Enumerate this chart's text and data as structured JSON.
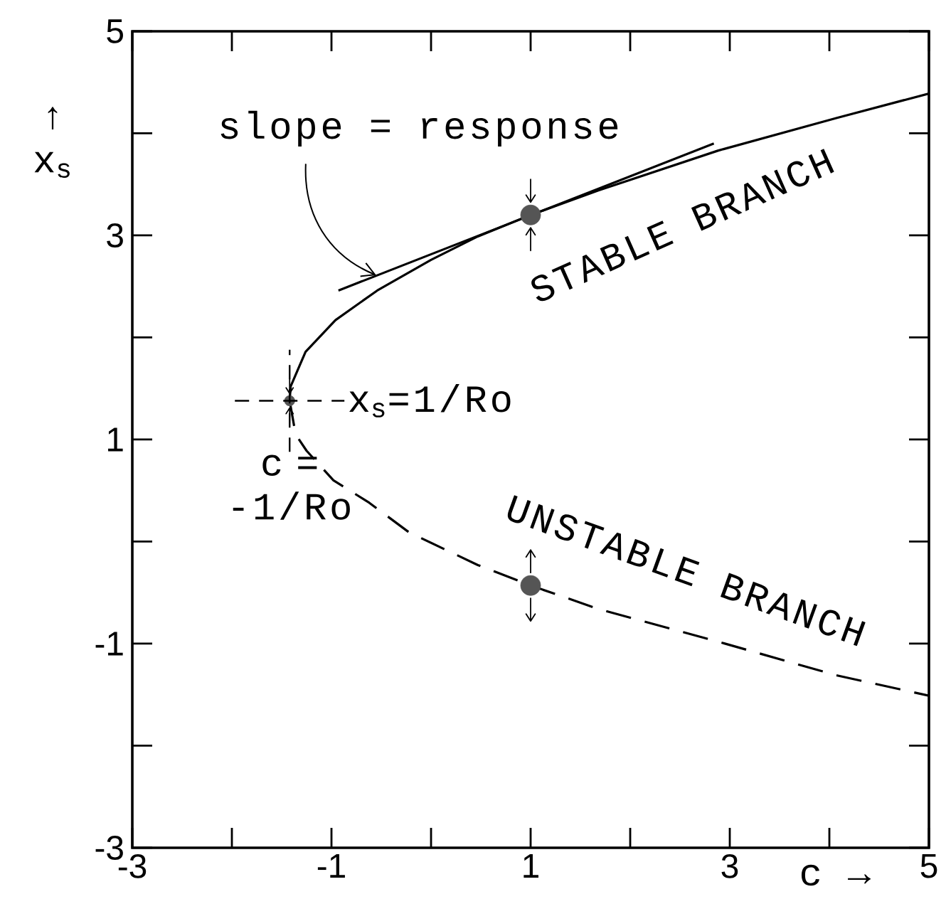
{
  "chart_data": {
    "type": "line",
    "xlabel": "c →",
    "ylabel": "↑ x$_{s}$",
    "xlim": [
      -3,
      5
    ],
    "ylim": [
      -3,
      5
    ],
    "xticks": [
      -3,
      {
        "value": -2,
        "label": null
      },
      -1,
      {
        "value": 0,
        "label": null
      },
      1,
      {
        "value": 2,
        "label": null
      },
      3,
      {
        "value": 4,
        "label": null
      },
      5
    ],
    "yticks": [
      -3,
      {
        "value": -2,
        "label": null
      },
      -1,
      {
        "value": 0,
        "label": null
      },
      1,
      {
        "value": 2,
        "label": null
      },
      3,
      {
        "value": 4,
        "label": null
      },
      5
    ],
    "series": [
      {
        "color": "#000000",
        "line_style": "solid",
        "x": [
          -1.42,
          -1.41,
          -1.26,
          -0.96,
          -0.54,
          0.0,
          0.47,
          1.0,
          1.68,
          2.88,
          4.07,
          5.0
        ],
        "values": [
          1.38,
          1.52,
          1.86,
          2.17,
          2.46,
          2.76,
          2.99,
          3.2,
          3.44,
          3.83,
          4.15,
          4.39
        ]
      },
      {
        "color": "#000000",
        "line_style": "dashed",
        "x": [
          -1.42,
          -1.36,
          -1.25,
          -0.98,
          -0.62,
          -0.22,
          0.47,
          1.0,
          1.68,
          2.88,
          4.07,
          5.0
        ],
        "values": [
          1.38,
          1.05,
          0.89,
          0.6,
          0.38,
          0.09,
          -0.23,
          -0.43,
          -0.66,
          -0.98,
          -1.31,
          -1.51
        ]
      },
      {
        "color": "#000000",
        "line_style": "solid",
        "x": [
          -0.93,
          2.84
        ],
        "values": [
          2.46,
          3.9
        ]
      },
      {
        "type": "scatter",
        "color": "#555555",
        "marker": "circle",
        "x": [
          1,
          1
        ],
        "values": [
          3.2,
          -0.43
        ]
      },
      {
        "type": "scatter",
        "color": "#555555",
        "marker": "circle",
        "x": [
          -1.42
        ],
        "values": [
          1.38
        ]
      }
    ],
    "ref_lines": [
      {
        "axis": "x",
        "value": -1.42,
        "label": "c = -1/Ro",
        "line_style": "dashed",
        "color": "#000000"
      },
      {
        "axis": "y",
        "value": 1.38,
        "label": "x$_{s}$=1/Ro",
        "line_style": "dashed",
        "color": "#000000"
      }
    ],
    "annotations": [
      {
        "text": "slope = response",
        "x": -0.55,
        "y": 2.61
      },
      {
        "text": "STABLE BRANCH",
        "x": 2.33,
        "y": 3.65
      },
      {
        "text": "UNSTABLE BRANCH",
        "x": 2.4,
        "y": -0.85
      }
    ]
  }
}
